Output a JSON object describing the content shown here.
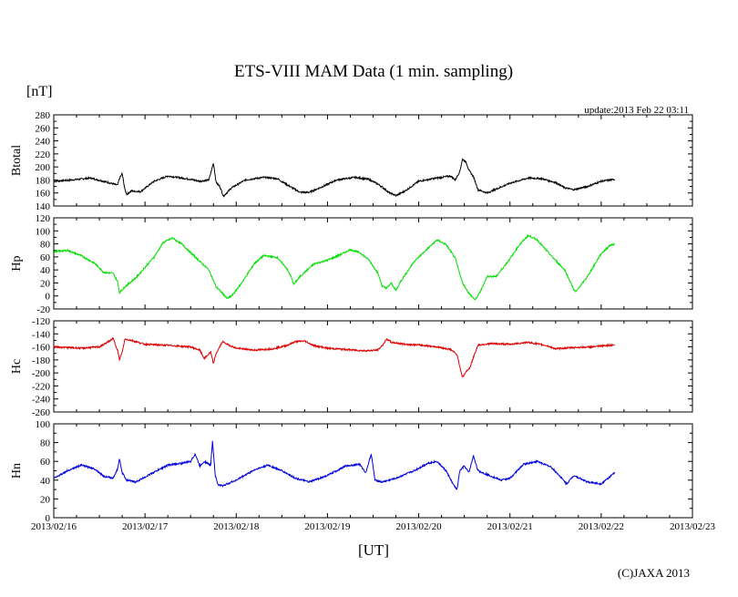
{
  "chart_data": {
    "type": "line",
    "title": "ETS-VIII MAM Data (1 min. sampling)",
    "unit_label": "[nT]",
    "update_text": "update:2013 Feb 22 03:11",
    "xlabel": "[UT]",
    "x_ticks": [
      "2013/02/16",
      "2013/02/17",
      "2013/02/18",
      "2013/02/19",
      "2013/02/20",
      "2013/02/21",
      "2013/02/22",
      "2013/02/23"
    ],
    "xlim_days": [
      0,
      7
    ],
    "data_end_day": 6.15,
    "copyright": "(C)JAXA 2013",
    "panels": [
      {
        "name": "btotal",
        "label": "Btotal",
        "color": "#000000",
        "ylim": [
          140,
          280
        ],
        "y_ticks": [
          140,
          160,
          180,
          200,
          220,
          240,
          260,
          280
        ],
        "series": [
          [
            0,
            178
          ],
          [
            0.2,
            180
          ],
          [
            0.4,
            183
          ],
          [
            0.6,
            176
          ],
          [
            0.7,
            172
          ],
          [
            0.72,
            182
          ],
          [
            0.75,
            190
          ],
          [
            0.78,
            165
          ],
          [
            0.8,
            158
          ],
          [
            0.85,
            163
          ],
          [
            0.95,
            162
          ],
          [
            1.1,
            178
          ],
          [
            1.25,
            186
          ],
          [
            1.35,
            184
          ],
          [
            1.5,
            181
          ],
          [
            1.6,
            178
          ],
          [
            1.7,
            180
          ],
          [
            1.75,
            206
          ],
          [
            1.78,
            176
          ],
          [
            1.82,
            170
          ],
          [
            1.86,
            155
          ],
          [
            1.95,
            168
          ],
          [
            2.1,
            180
          ],
          [
            2.3,
            184
          ],
          [
            2.45,
            182
          ],
          [
            2.6,
            169
          ],
          [
            2.7,
            161
          ],
          [
            2.8,
            161
          ],
          [
            2.95,
            170
          ],
          [
            3.1,
            180
          ],
          [
            3.3,
            184
          ],
          [
            3.45,
            181
          ],
          [
            3.55,
            174
          ],
          [
            3.6,
            169
          ],
          [
            3.68,
            160
          ],
          [
            3.72,
            158
          ],
          [
            3.75,
            156
          ],
          [
            3.85,
            163
          ],
          [
            4.0,
            178
          ],
          [
            4.2,
            183
          ],
          [
            4.35,
            186
          ],
          [
            4.4,
            180
          ],
          [
            4.45,
            193
          ],
          [
            4.48,
            212
          ],
          [
            4.52,
            207
          ],
          [
            4.55,
            195
          ],
          [
            4.6,
            185
          ],
          [
            4.65,
            165
          ],
          [
            4.75,
            160
          ],
          [
            5.0,
            175
          ],
          [
            5.2,
            183
          ],
          [
            5.35,
            182
          ],
          [
            5.5,
            176
          ],
          [
            5.6,
            168
          ],
          [
            5.7,
            165
          ],
          [
            5.85,
            170
          ],
          [
            6.0,
            178
          ],
          [
            6.15,
            181
          ]
        ]
      },
      {
        "name": "hp",
        "label": "Hp",
        "color": "#00e000",
        "ylim": [
          -20,
          120
        ],
        "y_ticks": [
          -20,
          0,
          20,
          40,
          60,
          80,
          100,
          120
        ],
        "series": [
          [
            0,
            68
          ],
          [
            0.15,
            70
          ],
          [
            0.3,
            62
          ],
          [
            0.45,
            50
          ],
          [
            0.55,
            36
          ],
          [
            0.65,
            35
          ],
          [
            0.7,
            22
          ],
          [
            0.72,
            5
          ],
          [
            0.78,
            14
          ],
          [
            0.9,
            28
          ],
          [
            1.1,
            60
          ],
          [
            1.2,
            82
          ],
          [
            1.3,
            89
          ],
          [
            1.4,
            80
          ],
          [
            1.55,
            60
          ],
          [
            1.7,
            40
          ],
          [
            1.78,
            14
          ],
          [
            1.85,
            4
          ],
          [
            1.9,
            -4
          ],
          [
            1.95,
            0
          ],
          [
            2.05,
            18
          ],
          [
            2.2,
            50
          ],
          [
            2.3,
            62
          ],
          [
            2.45,
            59
          ],
          [
            2.55,
            43
          ],
          [
            2.6,
            30
          ],
          [
            2.63,
            18
          ],
          [
            2.7,
            30
          ],
          [
            2.85,
            49
          ],
          [
            3.0,
            55
          ],
          [
            3.15,
            64
          ],
          [
            3.25,
            71
          ],
          [
            3.35,
            67
          ],
          [
            3.45,
            56
          ],
          [
            3.55,
            36
          ],
          [
            3.6,
            15
          ],
          [
            3.65,
            12
          ],
          [
            3.7,
            20
          ],
          [
            3.75,
            8
          ],
          [
            3.8,
            22
          ],
          [
            3.95,
            53
          ],
          [
            4.1,
            73
          ],
          [
            4.2,
            86
          ],
          [
            4.3,
            79
          ],
          [
            4.4,
            58
          ],
          [
            4.48,
            20
          ],
          [
            4.55,
            4
          ],
          [
            4.62,
            -6
          ],
          [
            4.68,
            8
          ],
          [
            4.75,
            30
          ],
          [
            4.85,
            30
          ],
          [
            5.0,
            57
          ],
          [
            5.1,
            78
          ],
          [
            5.2,
            93
          ],
          [
            5.3,
            86
          ],
          [
            5.45,
            62
          ],
          [
            5.6,
            40
          ],
          [
            5.7,
            10
          ],
          [
            5.72,
            6
          ],
          [
            5.85,
            30
          ],
          [
            6.0,
            65
          ],
          [
            6.1,
            78
          ],
          [
            6.15,
            80
          ]
        ]
      },
      {
        "name": "hc",
        "label": "Hc",
        "color": "#dd0000",
        "ylim": [
          -260,
          -120
        ],
        "y_ticks": [
          -260,
          -240,
          -220,
          -200,
          -180,
          -160,
          -140,
          -120
        ],
        "series": [
          [
            0,
            -160
          ],
          [
            0.3,
            -162
          ],
          [
            0.5,
            -160
          ],
          [
            0.6,
            -152
          ],
          [
            0.65,
            -147
          ],
          [
            0.7,
            -165
          ],
          [
            0.72,
            -180
          ],
          [
            0.75,
            -168
          ],
          [
            0.78,
            -148
          ],
          [
            0.85,
            -150
          ],
          [
            1.0,
            -156
          ],
          [
            1.3,
            -158
          ],
          [
            1.5,
            -160
          ],
          [
            1.6,
            -165
          ],
          [
            1.65,
            -178
          ],
          [
            1.72,
            -168
          ],
          [
            1.75,
            -186
          ],
          [
            1.78,
            -170
          ],
          [
            1.85,
            -152
          ],
          [
            1.9,
            -156
          ],
          [
            2.0,
            -162
          ],
          [
            2.2,
            -165
          ],
          [
            2.4,
            -163
          ],
          [
            2.55,
            -158
          ],
          [
            2.65,
            -152
          ],
          [
            2.75,
            -151
          ],
          [
            2.85,
            -158
          ],
          [
            3.0,
            -162
          ],
          [
            3.2,
            -164
          ],
          [
            3.4,
            -166
          ],
          [
            3.55,
            -165
          ],
          [
            3.6,
            -158
          ],
          [
            3.65,
            -148
          ],
          [
            3.7,
            -153
          ],
          [
            3.85,
            -156
          ],
          [
            4.0,
            -157
          ],
          [
            4.2,
            -160
          ],
          [
            4.35,
            -164
          ],
          [
            4.42,
            -172
          ],
          [
            4.45,
            -190
          ],
          [
            4.48,
            -207
          ],
          [
            4.52,
            -198
          ],
          [
            4.56,
            -192
          ],
          [
            4.6,
            -176
          ],
          [
            4.65,
            -157
          ],
          [
            4.8,
            -155
          ],
          [
            5.0,
            -156
          ],
          [
            5.2,
            -153
          ],
          [
            5.4,
            -158
          ],
          [
            5.5,
            -163
          ],
          [
            5.7,
            -161
          ],
          [
            5.9,
            -160
          ],
          [
            6.05,
            -158
          ],
          [
            6.15,
            -157
          ]
        ]
      },
      {
        "name": "hn",
        "label": "Hn",
        "color": "#0000dd",
        "ylim": [
          0,
          100
        ],
        "y_ticks": [
          0,
          20,
          40,
          60,
          80,
          100
        ],
        "series": [
          [
            0,
            42
          ],
          [
            0.15,
            50
          ],
          [
            0.3,
            56
          ],
          [
            0.45,
            52
          ],
          [
            0.55,
            44
          ],
          [
            0.65,
            42
          ],
          [
            0.7,
            52
          ],
          [
            0.72,
            63
          ],
          [
            0.75,
            48
          ],
          [
            0.8,
            40
          ],
          [
            0.9,
            38
          ],
          [
            1.05,
            46
          ],
          [
            1.25,
            56
          ],
          [
            1.4,
            58
          ],
          [
            1.5,
            60
          ],
          [
            1.55,
            68
          ],
          [
            1.6,
            55
          ],
          [
            1.65,
            60
          ],
          [
            1.72,
            56
          ],
          [
            1.74,
            82
          ],
          [
            1.77,
            45
          ],
          [
            1.8,
            35
          ],
          [
            1.85,
            34
          ],
          [
            2.0,
            40
          ],
          [
            2.2,
            51
          ],
          [
            2.35,
            56
          ],
          [
            2.5,
            50
          ],
          [
            2.65,
            42
          ],
          [
            2.8,
            38
          ],
          [
            3.0,
            45
          ],
          [
            3.2,
            55
          ],
          [
            3.35,
            57
          ],
          [
            3.42,
            48
          ],
          [
            3.45,
            58
          ],
          [
            3.48,
            68
          ],
          [
            3.52,
            40
          ],
          [
            3.6,
            38
          ],
          [
            3.75,
            42
          ],
          [
            3.95,
            50
          ],
          [
            4.1,
            58
          ],
          [
            4.2,
            60
          ],
          [
            4.3,
            50
          ],
          [
            4.38,
            35
          ],
          [
            4.42,
            30
          ],
          [
            4.45,
            50
          ],
          [
            4.5,
            55
          ],
          [
            4.55,
            48
          ],
          [
            4.6,
            66
          ],
          [
            4.65,
            50
          ],
          [
            4.75,
            46
          ],
          [
            4.9,
            40
          ],
          [
            5.0,
            42
          ],
          [
            5.15,
            57
          ],
          [
            5.3,
            60
          ],
          [
            5.45,
            54
          ],
          [
            5.55,
            44
          ],
          [
            5.62,
            36
          ],
          [
            5.7,
            45
          ],
          [
            5.85,
            38
          ],
          [
            6.0,
            36
          ],
          [
            6.1,
            44
          ],
          [
            6.15,
            48
          ]
        ]
      }
    ]
  }
}
